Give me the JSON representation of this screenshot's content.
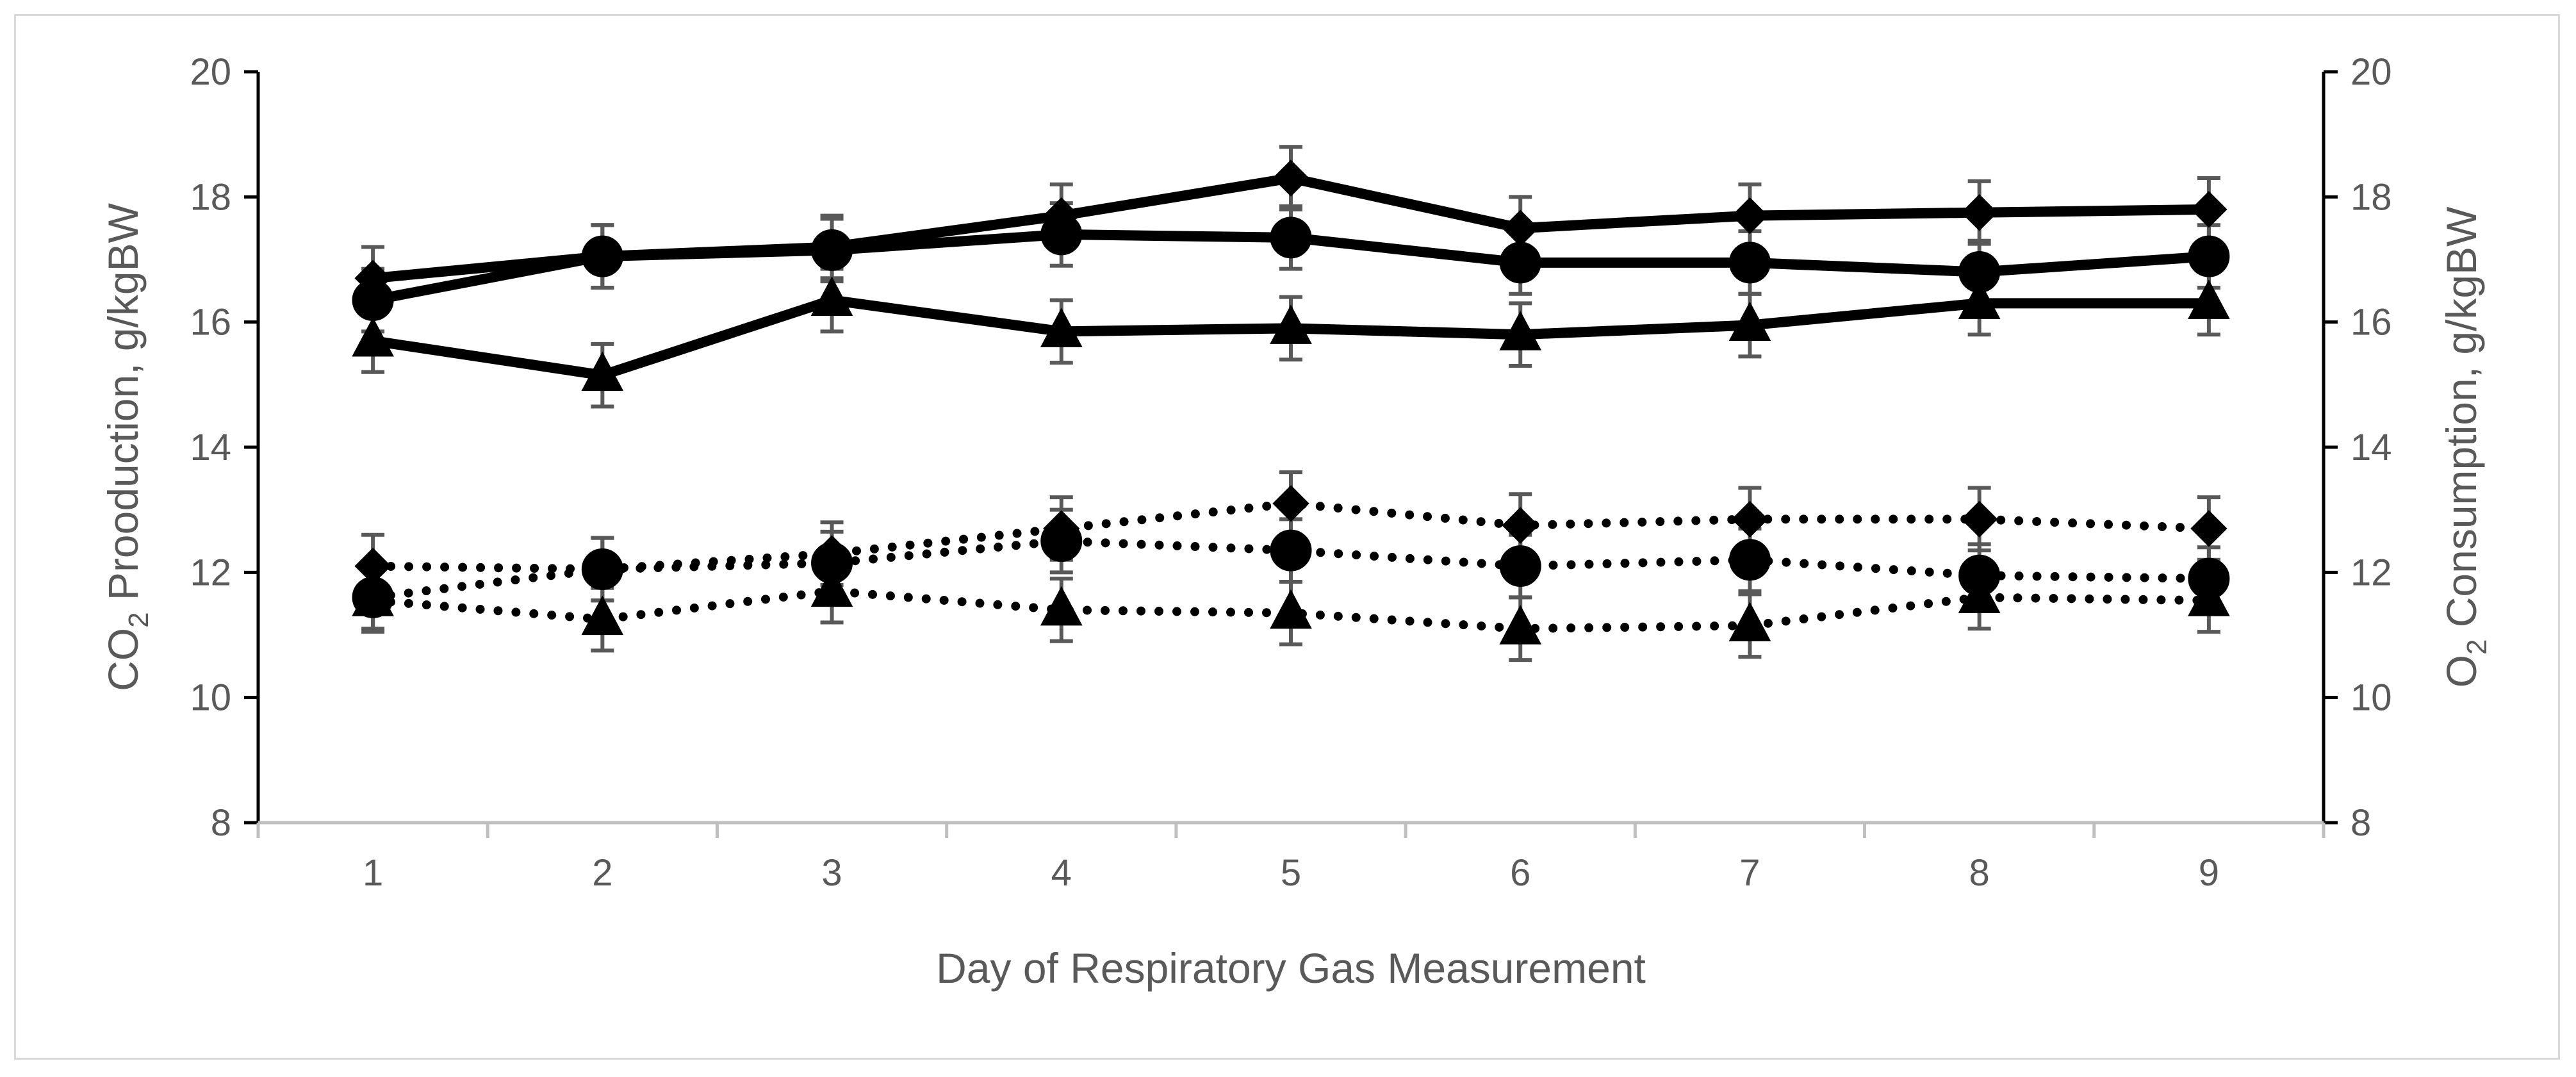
{
  "chart_data": {
    "type": "line",
    "title": "",
    "xlabel": "Day of Respiratory Gas Measurement",
    "ylabel_left": {
      "pre": "CO",
      "sub": "2",
      "post": " Prooduction, g/kgBW"
    },
    "ylabel_right": {
      "pre": "O",
      "sub": "2",
      "post": " Consumption, g/kgBW"
    },
    "x": [
      1,
      2,
      3,
      4,
      5,
      6,
      7,
      8,
      9
    ],
    "x_tick_labels": [
      "1",
      "2",
      "3",
      "4",
      "5",
      "6",
      "7",
      "8",
      "9"
    ],
    "ylim": [
      8,
      20
    ],
    "ylim_right": [
      8,
      20
    ],
    "y_ticks": [
      8,
      10,
      12,
      14,
      16,
      18,
      20
    ],
    "y_tick_labels": [
      "8",
      "10",
      "12",
      "14",
      "16",
      "18",
      "20"
    ],
    "y_tick_labels_right": [
      "8",
      "10",
      "12",
      "14",
      "16",
      "18",
      "20"
    ],
    "grid": false,
    "error_bar": 0.5,
    "series": [
      {
        "name": "CO2 diamond",
        "marker": "diamond",
        "linestyle": "solid",
        "axis": "left",
        "values": [
          16.7,
          17.05,
          17.2,
          17.7,
          18.3,
          17.5,
          17.7,
          17.75,
          17.8
        ]
      },
      {
        "name": "CO2 circle",
        "marker": "circle",
        "linestyle": "solid",
        "axis": "left",
        "values": [
          16.35,
          17.05,
          17.15,
          17.4,
          17.35,
          16.95,
          16.95,
          16.8,
          17.05
        ]
      },
      {
        "name": "CO2 triangle",
        "marker": "triangle",
        "linestyle": "solid",
        "axis": "left",
        "values": [
          15.7,
          15.15,
          16.35,
          15.85,
          15.9,
          15.8,
          15.95,
          16.3,
          16.3
        ]
      },
      {
        "name": "O2 diamond",
        "marker": "diamond",
        "linestyle": "dotted",
        "axis": "right",
        "values": [
          12.1,
          12.05,
          12.3,
          12.7,
          13.1,
          12.75,
          12.85,
          12.85,
          12.7
        ]
      },
      {
        "name": "O2 circle",
        "marker": "circle",
        "linestyle": "dotted",
        "axis": "right",
        "values": [
          11.6,
          12.05,
          12.15,
          12.5,
          12.35,
          12.1,
          12.2,
          11.95,
          11.9
        ]
      },
      {
        "name": "O2 triangle",
        "marker": "triangle",
        "linestyle": "dotted",
        "axis": "right",
        "values": [
          11.55,
          11.25,
          11.7,
          11.4,
          11.35,
          11.1,
          11.15,
          11.6,
          11.55
        ]
      }
    ]
  }
}
